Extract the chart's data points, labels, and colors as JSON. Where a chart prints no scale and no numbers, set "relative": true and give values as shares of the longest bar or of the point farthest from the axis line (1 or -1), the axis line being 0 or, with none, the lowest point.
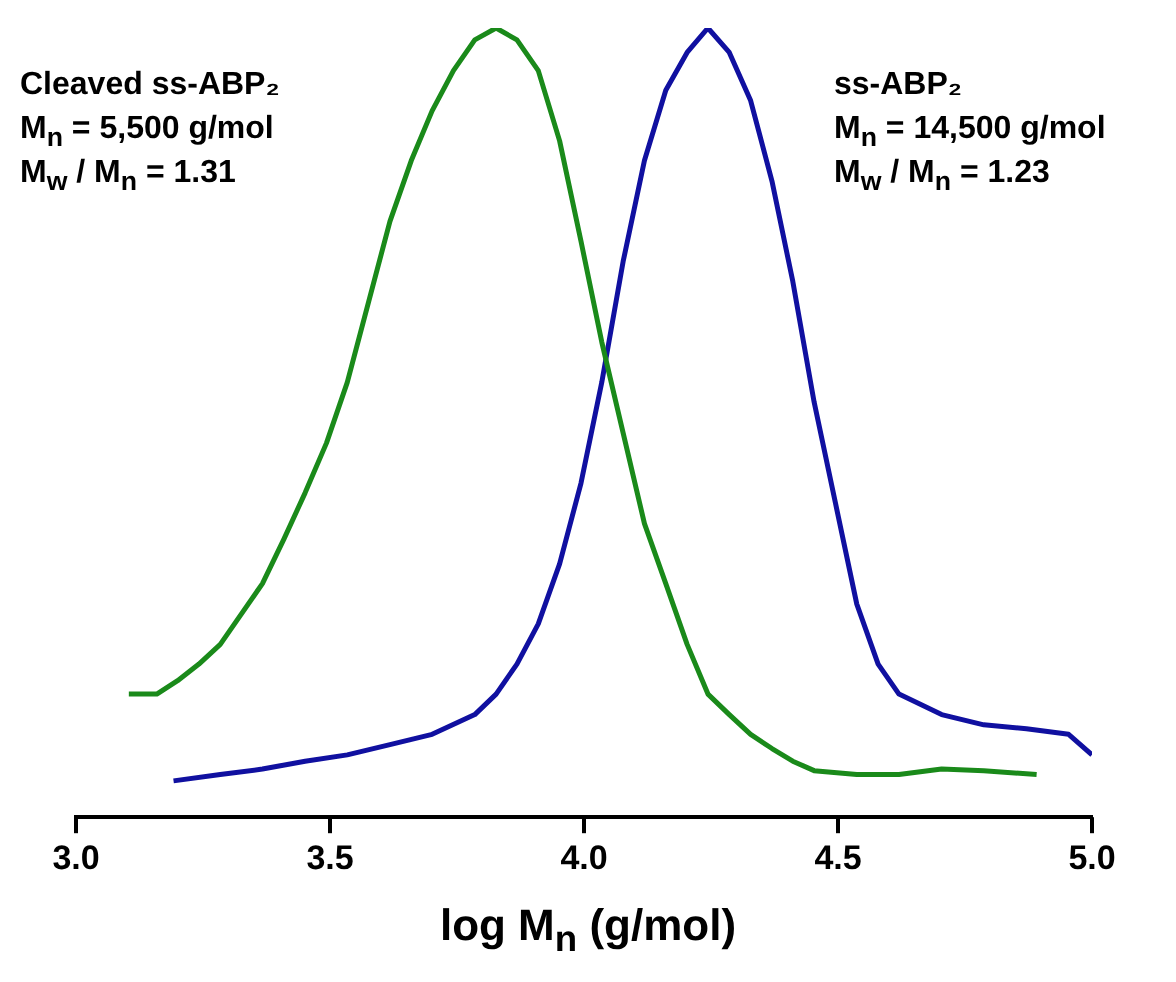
{
  "chart_data": {
    "type": "line",
    "relative": true,
    "xlabel": "log M$_{n}$ (g/mol)",
    "xlim": [
      3,
      5
    ],
    "xticks": [
      {
        "value": 3,
        "label": "3.0"
      },
      {
        "value": 3.5,
        "label": "3.5"
      },
      {
        "value": 4,
        "label": "4.0"
      },
      {
        "value": 4.5,
        "label": "4.5"
      },
      {
        "value": 5,
        "label": "5.0"
      }
    ],
    "grid": false,
    "legend": false,
    "marker": "none",
    "line_style": "solid",
    "series": [
      {
        "color": "#1a8a1a",
        "x": [
          3.104,
          3.159,
          3.2,
          3.242,
          3.284,
          3.326,
          3.367,
          3.409,
          3.451,
          3.493,
          3.534,
          3.576,
          3.618,
          3.66,
          3.701,
          3.743,
          3.785,
          3.827,
          3.868,
          3.91,
          3.952,
          3.994,
          4.035,
          4.077,
          4.119,
          4.161,
          4.203,
          4.244,
          4.286,
          4.328,
          4.37,
          4.411,
          4.453,
          4.537,
          4.62,
          4.704,
          4.787,
          4.891
        ],
        "values": [
          0.156,
          0.156,
          0.173,
          0.194,
          0.219,
          0.258,
          0.296,
          0.352,
          0.411,
          0.474,
          0.551,
          0.653,
          0.755,
          0.832,
          0.895,
          0.946,
          0.985,
          1,
          0.985,
          0.946,
          0.857,
          0.73,
          0.602,
          0.487,
          0.372,
          0.296,
          0.219,
          0.156,
          0.13,
          0.105,
          0.087,
          0.071,
          0.059,
          0.054,
          0.054,
          0.061,
          0.059,
          0.054
        ]
      },
      {
        "color": "#1010a0",
        "x": [
          3.192,
          3.284,
          3.367,
          3.451,
          3.534,
          3.618,
          3.701,
          3.785,
          3.827,
          3.868,
          3.91,
          3.952,
          3.994,
          4.035,
          4.077,
          4.119,
          4.161,
          4.203,
          4.244,
          4.286,
          4.328,
          4.37,
          4.411,
          4.453,
          4.495,
          4.537,
          4.579,
          4.62,
          4.704,
          4.787,
          4.871,
          4.954,
          5.0
        ],
        "values": [
          0.046,
          0.054,
          0.061,
          0.071,
          0.079,
          0.092,
          0.105,
          0.13,
          0.156,
          0.194,
          0.245,
          0.321,
          0.423,
          0.551,
          0.704,
          0.832,
          0.921,
          0.969,
          1,
          0.969,
          0.908,
          0.806,
          0.679,
          0.526,
          0.398,
          0.27,
          0.194,
          0.156,
          0.13,
          0.117,
          0.112,
          0.105,
          0.079
        ]
      }
    ],
    "annotations": [
      "Cleaved ss-ABP₂",
      "M$_{n}$ = 5,500 g/mol",
      "M$_{w}$ / M$_{n}$ = 1.31",
      "ss-ABP₂",
      "M$_{n}$ = 14,500 g/mol",
      "M$_{w}$ / M$_{n}$ =  1.23"
    ]
  }
}
